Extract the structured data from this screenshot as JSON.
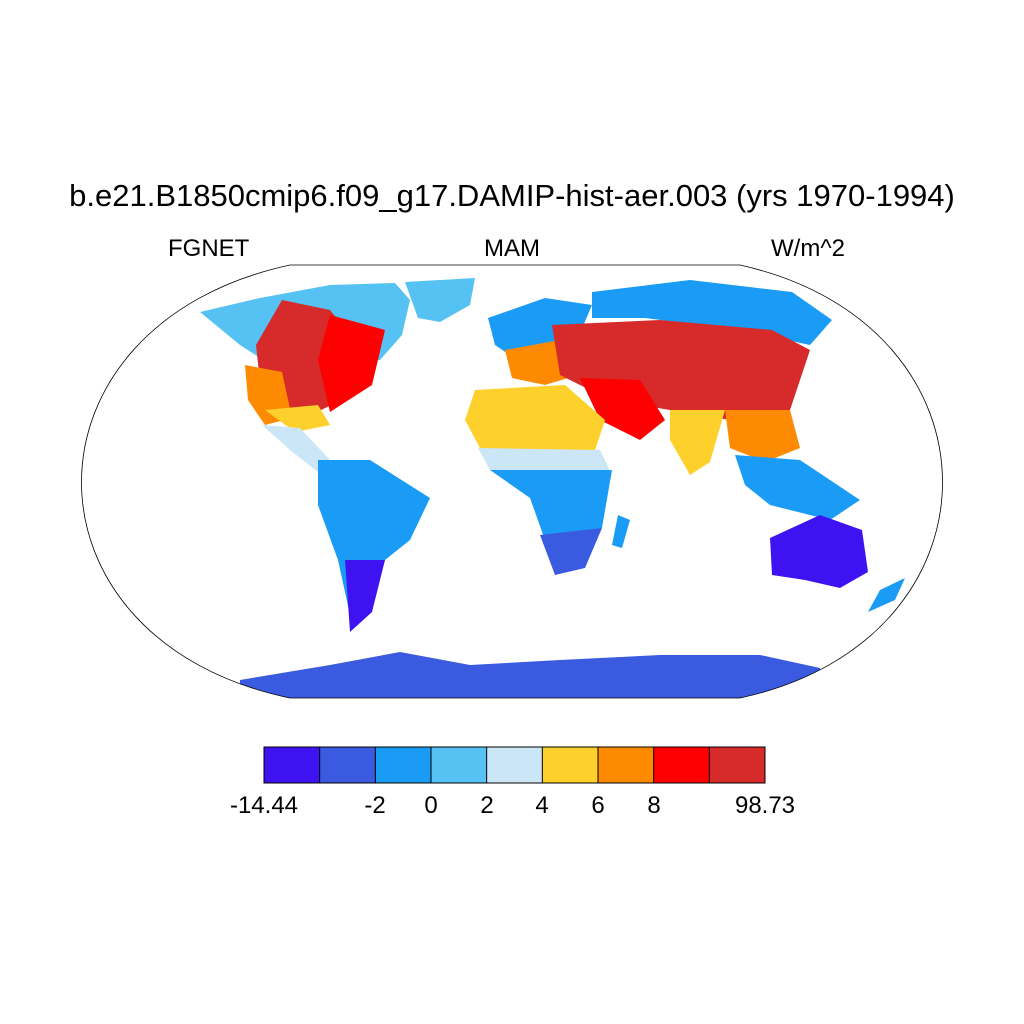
{
  "title": "b.e21.B1850cmip6.f09_g17.DAMIP-hist-aer.003 (yrs 1970-1994)",
  "subtitle_left": "FGNET",
  "subtitle_center": "MAM",
  "subtitle_right": "W/m^2",
  "colors": {
    "bin1": "#3f12f2",
    "bin2": "#3a5ae0",
    "bin3": "#1a9bf6",
    "bin4": "#56c2f3",
    "bin5": "#cbe6f6",
    "bin6": "#fdd02b",
    "bin7": "#fd8a00",
    "bin8": "#fd0000",
    "bin9": "#d72a2a",
    "coast": "#1a1a1a"
  },
  "colorbar": {
    "labels": [
      "-14.44",
      "-2",
      "0",
      "2",
      "4",
      "6",
      "8",
      "98.73"
    ]
  }
}
